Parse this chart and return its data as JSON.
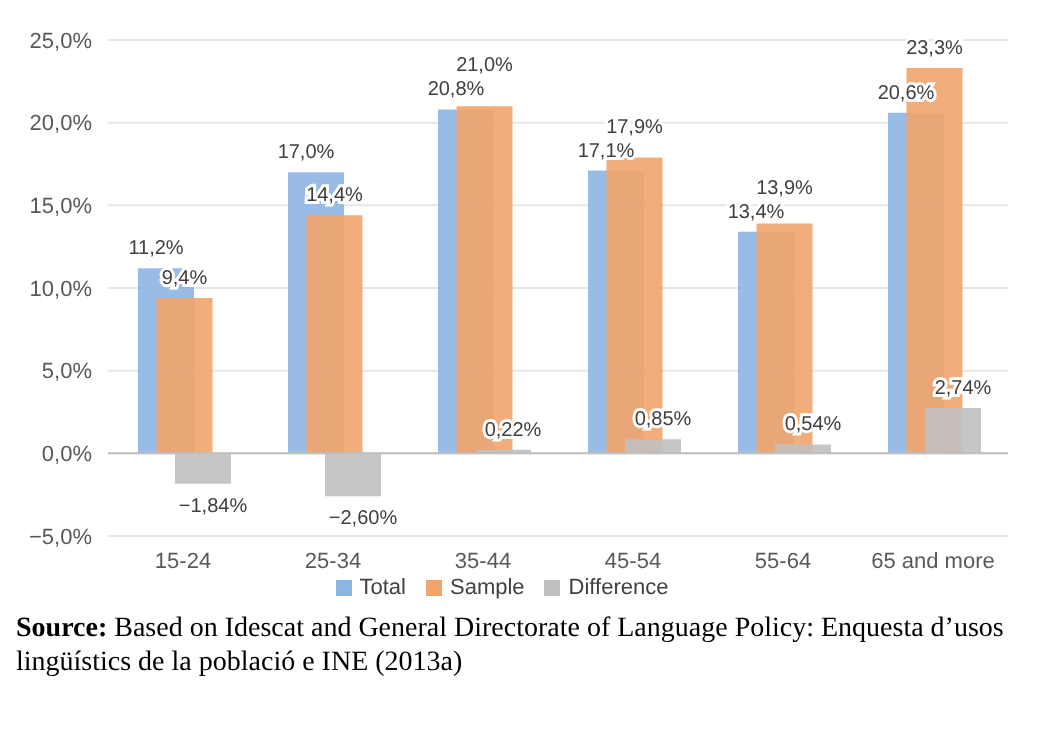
{
  "chart_data": {
    "type": "bar",
    "categories": [
      "15-24",
      "25-34",
      "35-44",
      "45-54",
      "55-64",
      "65 and more"
    ],
    "series": [
      {
        "name": "Total",
        "color": "#8db5e2",
        "values": [
          11.2,
          17.0,
          20.8,
          17.1,
          13.4,
          20.6
        ],
        "value_labels": [
          "11,2%",
          "17,0%",
          "20,8%",
          "17,1%",
          "13,4%",
          "20,6%"
        ]
      },
      {
        "name": "Sample",
        "color": "#f2a46c",
        "values": [
          9.4,
          14.4,
          21.0,
          17.9,
          13.9,
          23.3
        ],
        "value_labels": [
          "9,4%",
          "14,4%",
          "21,0%",
          "17,9%",
          "13,9%",
          "23,3%"
        ]
      },
      {
        "name": "Difference",
        "color": "#c0c0c0",
        "values": [
          -1.84,
          -2.6,
          0.22,
          0.85,
          0.54,
          2.74
        ],
        "value_labels": [
          "−1,84%",
          "−2,60%",
          "0,22%",
          "0,85%",
          "0,54%",
          "2,74%"
        ]
      }
    ],
    "ylim": [
      -5,
      25
    ],
    "yticks": [
      {
        "value": -5,
        "label": "−5,0%"
      },
      {
        "value": 0,
        "label": "0,0%"
      },
      {
        "value": 5,
        "label": "5,0%"
      },
      {
        "value": 10,
        "label": "10,0%"
      },
      {
        "value": 15,
        "label": "15,0%"
      },
      {
        "value": 20,
        "label": "20,0%"
      },
      {
        "value": 25,
        "label": "25,0%"
      }
    ],
    "grid": "y",
    "legend": "bottom",
    "annotations": [
      "Source: Based on Idescat and General Directorate of Language Policy: Enquesta d’usos lingüístics de la població e INE (2013a)"
    ]
  }
}
